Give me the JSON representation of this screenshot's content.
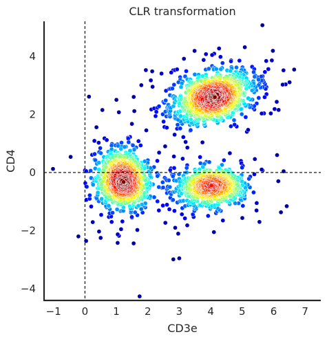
{
  "chart_data": {
    "type": "scatter",
    "title": "CLR transformation",
    "xlabel": "CD3e",
    "ylabel": "CD4",
    "xlim": [
      -1.3,
      7.5
    ],
    "ylim": [
      -4.4,
      5.2
    ],
    "xticks": [
      -1,
      0,
      1,
      2,
      3,
      4,
      5,
      6,
      7
    ],
    "yticks": [
      -4,
      -2,
      0,
      2,
      4
    ],
    "xtick_labels": [
      "−1",
      "0",
      "1",
      "2",
      "3",
      "4",
      "5",
      "6",
      "7"
    ],
    "ytick_labels": [
      "−4",
      "−2",
      "0",
      "2",
      "4"
    ],
    "reference_lines": {
      "vertical_x": 0,
      "horizontal_y": 0,
      "style": "dashed"
    },
    "grid": false,
    "color_encoding": "point density",
    "colormap": [
      "#00007f",
      "#0000ff",
      "#0080ff",
      "#00ffff",
      "#80ff80",
      "#ffff00",
      "#ff8000",
      "#ff0000",
      "#7f0000"
    ],
    "clusters": [
      {
        "center": [
          1.2,
          -0.25
        ],
        "spread": [
          0.38,
          0.5
        ],
        "rotation": 0.2,
        "count": 900
      },
      {
        "center": [
          4.05,
          2.6
        ],
        "spread": [
          0.65,
          0.38
        ],
        "rotation": 0.35,
        "count": 1100
      },
      {
        "center": [
          4.0,
          -0.5
        ],
        "spread": [
          0.55,
          0.3
        ],
        "rotation": 0.05,
        "count": 700
      }
    ],
    "outliers": [
      [
        3.0,
        -2.95
      ],
      [
        4.1,
        -2.05
      ],
      [
        6.15,
        -0.3
      ],
      [
        2.15,
        2.95
      ],
      [
        1.55,
        2.6
      ],
      [
        2.55,
        0.9
      ],
      [
        2.7,
        -0.5
      ],
      [
        2.35,
        -0.5
      ],
      [
        1.0,
        2.5
      ],
      [
        5.55,
        -1.7
      ],
      [
        2.5,
        1.75
      ],
      [
        2.85,
        1.3
      ],
      [
        1.95,
        1.45
      ],
      [
        2.3,
        0.4
      ],
      [
        3.25,
        0.25
      ],
      [
        5.15,
        1.4
      ],
      [
        1.15,
        -1.95
      ],
      [
        0.85,
        -1.7
      ],
      [
        2.65,
        2.2
      ],
      [
        3.2,
        1.05
      ]
    ]
  }
}
